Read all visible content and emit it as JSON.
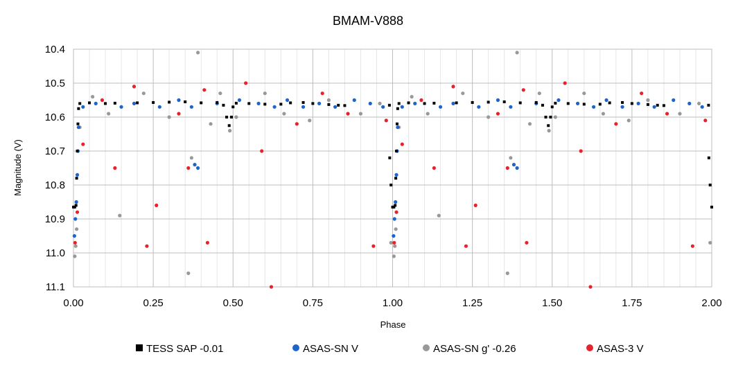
{
  "chart_data": {
    "type": "scatter",
    "title": "BMAM-V888",
    "xlabel": "Phase",
    "ylabel": "Magnitude (V)",
    "xlim": [
      0,
      2
    ],
    "ylim": [
      10.4,
      11.1
    ],
    "y_inverted": true,
    "grid": true,
    "legend_position": "bottom",
    "x_ticks": [
      "0.00",
      "0.25",
      "0.50",
      "0.75",
      "1.00",
      "1.25",
      "1.50",
      "1.75",
      "2.00"
    ],
    "y_ticks": [
      "10.4",
      "10.5",
      "10.6",
      "10.7",
      "10.8",
      "10.9",
      "11.0",
      "11.1"
    ],
    "series": [
      {
        "name": "TESS SAP -0.01",
        "marker": "square",
        "color": "#000000",
        "points": [
          [
            0.0,
            10.865
          ],
          [
            0.004,
            10.865
          ],
          [
            0.008,
            10.86
          ],
          [
            0.01,
            10.78
          ],
          [
            0.012,
            10.7
          ],
          [
            0.014,
            10.62
          ],
          [
            0.016,
            10.575
          ],
          [
            0.02,
            10.56
          ],
          [
            0.05,
            10.558
          ],
          [
            0.1,
            10.56
          ],
          [
            0.13,
            10.559
          ],
          [
            0.2,
            10.558
          ],
          [
            0.25,
            10.557
          ],
          [
            0.3,
            10.556
          ],
          [
            0.35,
            10.555
          ],
          [
            0.4,
            10.558
          ],
          [
            0.45,
            10.557
          ],
          [
            0.47,
            10.565
          ],
          [
            0.48,
            10.6
          ],
          [
            0.488,
            10.625
          ],
          [
            0.495,
            10.6
          ],
          [
            0.5,
            10.57
          ],
          [
            0.51,
            10.559
          ],
          [
            0.55,
            10.56
          ],
          [
            0.6,
            10.562
          ],
          [
            0.65,
            10.562
          ],
          [
            0.68,
            10.558
          ],
          [
            0.72,
            10.557
          ],
          [
            0.75,
            10.56
          ],
          [
            0.8,
            10.563
          ],
          [
            0.83,
            10.565
          ],
          [
            0.85,
            10.566
          ],
          [
            0.99,
            10.565
          ],
          [
            0.991,
            10.72
          ],
          [
            0.995,
            10.8
          ],
          [
            1.0,
            10.865
          ],
          [
            1.004,
            10.865
          ],
          [
            1.008,
            10.86
          ],
          [
            1.01,
            10.78
          ],
          [
            1.012,
            10.7
          ],
          [
            1.014,
            10.62
          ],
          [
            1.016,
            10.575
          ],
          [
            1.02,
            10.56
          ],
          [
            1.05,
            10.558
          ],
          [
            1.1,
            10.56
          ],
          [
            1.13,
            10.559
          ],
          [
            1.2,
            10.558
          ],
          [
            1.25,
            10.557
          ],
          [
            1.3,
            10.556
          ],
          [
            1.35,
            10.555
          ],
          [
            1.4,
            10.558
          ],
          [
            1.45,
            10.557
          ],
          [
            1.47,
            10.565
          ],
          [
            1.48,
            10.6
          ],
          [
            1.488,
            10.625
          ],
          [
            1.495,
            10.6
          ],
          [
            1.5,
            10.57
          ],
          [
            1.51,
            10.559
          ],
          [
            1.55,
            10.56
          ],
          [
            1.6,
            10.562
          ],
          [
            1.65,
            10.562
          ],
          [
            1.68,
            10.558
          ],
          [
            1.72,
            10.557
          ],
          [
            1.75,
            10.56
          ],
          [
            1.8,
            10.563
          ],
          [
            1.83,
            10.565
          ],
          [
            1.85,
            10.566
          ],
          [
            1.99,
            10.565
          ],
          [
            1.991,
            10.72
          ],
          [
            1.995,
            10.8
          ],
          [
            2.0,
            10.865
          ]
        ]
      },
      {
        "name": "ASAS-SN V",
        "marker": "circle",
        "color": "#1f64c8",
        "points": [
          [
            0.003,
            10.95
          ],
          [
            0.006,
            10.9
          ],
          [
            0.009,
            10.85
          ],
          [
            0.012,
            10.77
          ],
          [
            0.014,
            10.7
          ],
          [
            0.016,
            10.63
          ],
          [
            0.03,
            10.57
          ],
          [
            0.07,
            10.56
          ],
          [
            0.15,
            10.57
          ],
          [
            0.19,
            10.56
          ],
          [
            0.27,
            10.57
          ],
          [
            0.33,
            10.55
          ],
          [
            0.37,
            10.57
          ],
          [
            0.38,
            10.74
          ],
          [
            0.39,
            10.75
          ],
          [
            0.45,
            10.56
          ],
          [
            0.52,
            10.55
          ],
          [
            0.58,
            10.56
          ],
          [
            0.63,
            10.57
          ],
          [
            0.67,
            10.55
          ],
          [
            0.72,
            10.57
          ],
          [
            0.77,
            10.56
          ],
          [
            0.82,
            10.57
          ],
          [
            0.88,
            10.55
          ],
          [
            0.93,
            10.56
          ],
          [
            0.97,
            10.57
          ],
          [
            1.003,
            10.95
          ],
          [
            1.006,
            10.9
          ],
          [
            1.009,
            10.85
          ],
          [
            1.012,
            10.77
          ],
          [
            1.014,
            10.7
          ],
          [
            1.016,
            10.63
          ],
          [
            1.03,
            10.57
          ],
          [
            1.07,
            10.56
          ],
          [
            1.15,
            10.57
          ],
          [
            1.19,
            10.56
          ],
          [
            1.27,
            10.57
          ],
          [
            1.33,
            10.55
          ],
          [
            1.37,
            10.57
          ],
          [
            1.38,
            10.74
          ],
          [
            1.39,
            10.75
          ],
          [
            1.45,
            10.56
          ],
          [
            1.52,
            10.55
          ],
          [
            1.58,
            10.56
          ],
          [
            1.63,
            10.57
          ],
          [
            1.67,
            10.55
          ],
          [
            1.72,
            10.57
          ],
          [
            1.77,
            10.56
          ],
          [
            1.82,
            10.57
          ],
          [
            1.88,
            10.55
          ],
          [
            1.93,
            10.56
          ],
          [
            1.97,
            10.57
          ]
        ]
      },
      {
        "name": "ASAS-SN g' -0.26",
        "marker": "circle",
        "color": "#999999",
        "points": [
          [
            0.004,
            11.01
          ],
          [
            0.007,
            10.98
          ],
          [
            0.01,
            10.93
          ],
          [
            0.02,
            10.63
          ],
          [
            0.06,
            10.54
          ],
          [
            0.11,
            10.59
          ],
          [
            0.145,
            10.89
          ],
          [
            0.22,
            10.53
          ],
          [
            0.3,
            10.6
          ],
          [
            0.36,
            11.06
          ],
          [
            0.37,
            10.72
          ],
          [
            0.39,
            10.41
          ],
          [
            0.43,
            10.62
          ],
          [
            0.46,
            10.53
          ],
          [
            0.49,
            10.64
          ],
          [
            0.51,
            10.6
          ],
          [
            0.6,
            10.53
          ],
          [
            0.66,
            10.59
          ],
          [
            0.74,
            10.61
          ],
          [
            0.8,
            10.55
          ],
          [
            0.9,
            10.59
          ],
          [
            0.96,
            10.56
          ],
          [
            0.995,
            10.97
          ],
          [
            1.004,
            11.01
          ],
          [
            1.007,
            10.98
          ],
          [
            1.01,
            10.93
          ],
          [
            1.02,
            10.63
          ],
          [
            1.06,
            10.54
          ],
          [
            1.11,
            10.59
          ],
          [
            1.145,
            10.89
          ],
          [
            1.22,
            10.53
          ],
          [
            1.3,
            10.6
          ],
          [
            1.36,
            11.06
          ],
          [
            1.37,
            10.72
          ],
          [
            1.39,
            10.41
          ],
          [
            1.43,
            10.62
          ],
          [
            1.46,
            10.53
          ],
          [
            1.49,
            10.64
          ],
          [
            1.51,
            10.6
          ],
          [
            1.6,
            10.53
          ],
          [
            1.66,
            10.59
          ],
          [
            1.74,
            10.61
          ],
          [
            1.8,
            10.55
          ],
          [
            1.9,
            10.59
          ],
          [
            1.96,
            10.56
          ],
          [
            1.995,
            10.97
          ]
        ]
      },
      {
        "name": "ASAS-3 V",
        "marker": "circle",
        "color": "#e6232d",
        "points": [
          [
            0.005,
            10.97
          ],
          [
            0.012,
            10.88
          ],
          [
            0.03,
            10.68
          ],
          [
            0.09,
            10.55
          ],
          [
            0.13,
            10.75
          ],
          [
            0.19,
            10.51
          ],
          [
            0.23,
            10.98
          ],
          [
            0.26,
            10.86
          ],
          [
            0.33,
            10.59
          ],
          [
            0.36,
            10.75
          ],
          [
            0.41,
            10.52
          ],
          [
            0.42,
            10.97
          ],
          [
            0.54,
            10.5
          ],
          [
            0.59,
            10.7
          ],
          [
            0.62,
            11.1
          ],
          [
            0.7,
            10.62
          ],
          [
            0.78,
            10.53
          ],
          [
            0.86,
            10.59
          ],
          [
            0.94,
            10.98
          ],
          [
            0.98,
            10.61
          ],
          [
            1.005,
            10.97
          ],
          [
            1.012,
            10.88
          ],
          [
            1.03,
            10.68
          ],
          [
            1.09,
            10.55
          ],
          [
            1.13,
            10.75
          ],
          [
            1.19,
            10.51
          ],
          [
            1.23,
            10.98
          ],
          [
            1.26,
            10.86
          ],
          [
            1.33,
            10.59
          ],
          [
            1.36,
            10.75
          ],
          [
            1.41,
            10.52
          ],
          [
            1.42,
            10.97
          ],
          [
            1.54,
            10.5
          ],
          [
            1.59,
            10.7
          ],
          [
            1.62,
            11.1
          ],
          [
            1.7,
            10.62
          ],
          [
            1.78,
            10.53
          ],
          [
            1.86,
            10.59
          ],
          [
            1.94,
            10.98
          ],
          [
            1.98,
            10.61
          ]
        ]
      }
    ]
  }
}
